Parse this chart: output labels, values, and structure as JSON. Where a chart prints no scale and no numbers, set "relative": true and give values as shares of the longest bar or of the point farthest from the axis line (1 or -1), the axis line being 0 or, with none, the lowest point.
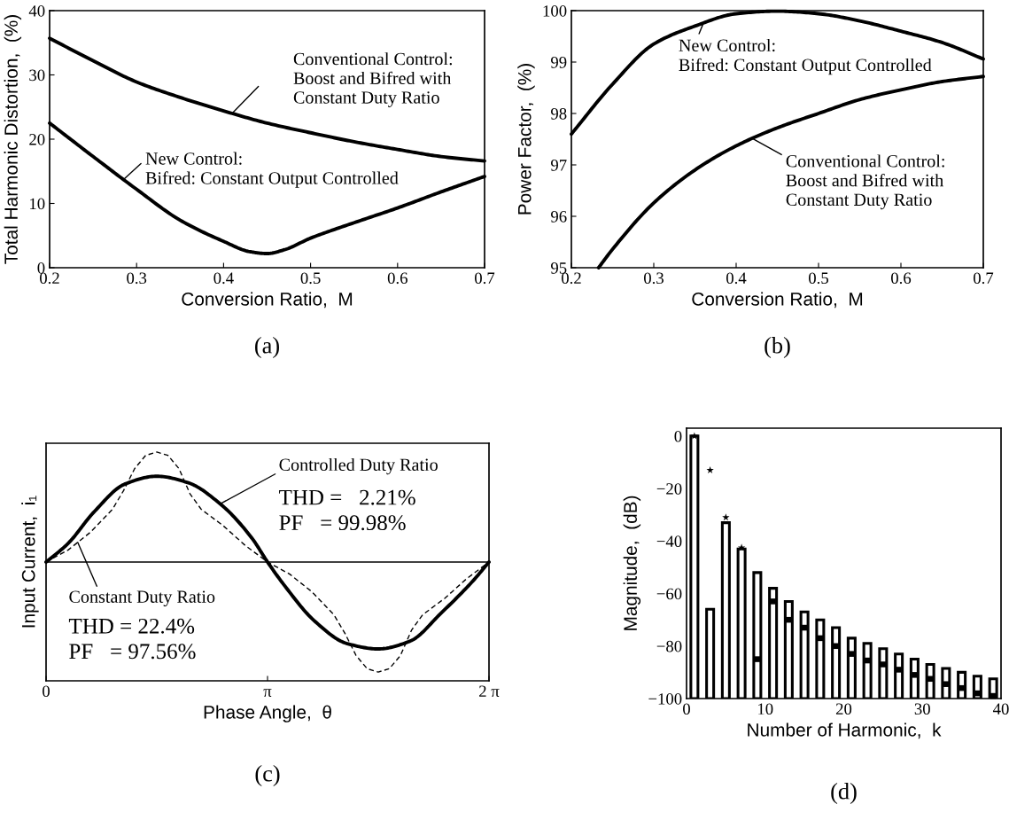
{
  "chart_data": [
    {
      "type": "line",
      "title": "(a)",
      "xlabel": "Conversion Ratio,  M",
      "ylabel": "Total Harmonic Distortion,  (%)",
      "xlim": [
        0.2,
        0.7
      ],
      "ylim": [
        0,
        40
      ],
      "xticks": [
        0.2,
        0.3,
        0.4,
        0.5,
        0.6,
        0.7
      ],
      "yticks": [
        0,
        10,
        20,
        30,
        40
      ],
      "series": [
        {
          "name": "Conventional Control:\nBoost and Bifred with\nConstant Duty Ratio",
          "color": "#000000",
          "x": [
            0.2,
            0.25,
            0.3,
            0.35,
            0.4,
            0.45,
            0.5,
            0.55,
            0.6,
            0.65,
            0.7
          ],
          "values": [
            35.7,
            32.2,
            28.9,
            26.5,
            24.4,
            22.5,
            21.0,
            19.6,
            18.4,
            17.3,
            16.6
          ]
        },
        {
          "name": "New Control:\nBifred: Constant Output Controlled",
          "color": "#000000",
          "x": [
            0.2,
            0.25,
            0.3,
            0.35,
            0.4,
            0.43,
            0.45,
            0.47,
            0.5,
            0.55,
            0.6,
            0.65,
            0.7
          ],
          "values": [
            22.5,
            17.3,
            12.2,
            7.4,
            4.1,
            2.5,
            2.2,
            2.8,
            4.6,
            7.0,
            9.3,
            11.8,
            14.2
          ]
        }
      ]
    },
    {
      "type": "line",
      "title": "(b)",
      "xlabel": "Conversion Ratio,  M",
      "ylabel": "Power Factor,  (%)",
      "xlim": [
        0.2,
        0.7
      ],
      "ylim": [
        95,
        100
      ],
      "xticks": [
        0.2,
        0.3,
        0.4,
        0.5,
        0.6,
        0.7
      ],
      "yticks": [
        95,
        96,
        97,
        98,
        99,
        100
      ],
      "series": [
        {
          "name": "New Control:\nBifred: Constant Output Controlled",
          "color": "#000000",
          "x": [
            0.2,
            0.25,
            0.3,
            0.35,
            0.4,
            0.45,
            0.5,
            0.55,
            0.6,
            0.65,
            0.7
          ],
          "values": [
            97.6,
            98.57,
            99.35,
            99.7,
            99.94,
            99.99,
            99.94,
            99.8,
            99.6,
            99.38,
            99.06
          ]
        },
        {
          "name": "Conventional Control:\nBoost and Bifred with\nConstant Duty Ratio",
          "color": "#000000",
          "x": [
            0.233,
            0.25,
            0.3,
            0.35,
            0.4,
            0.45,
            0.5,
            0.55,
            0.6,
            0.65,
            0.7
          ],
          "values": [
            95.0,
            95.36,
            96.26,
            96.9,
            97.37,
            97.72,
            98.0,
            98.27,
            98.46,
            98.62,
            98.72
          ]
        }
      ]
    },
    {
      "type": "line",
      "title": "(c)",
      "xlabel": "Phase Angle,  θ",
      "ylabel": "Input Current,  i₁",
      "relative": true,
      "xlim": [
        0,
        6.2832
      ],
      "xticks": [
        0,
        {
          "value": 3.1416,
          "label": "π"
        },
        {
          "value": 6.2832,
          "label": "2 π"
        }
      ],
      "ref_lines": [
        {
          "axis": "y",
          "value": 0,
          "color": "#000000"
        }
      ],
      "series": [
        {
          "name": "Controlled Duty Ratio",
          "color": "#000000",
          "line_style": "solid",
          "x": [
            0,
            0.314,
            0.673,
            1.122,
            1.571,
            2.02,
            2.468,
            2.917,
            3.142,
            3.366,
            3.815,
            4.264,
            4.712,
            5.161,
            5.61,
            6.058,
            6.283
          ],
          "values": [
            0,
            0.17,
            0.45,
            0.71,
            0.78,
            0.72,
            0.53,
            0.22,
            0,
            -0.2,
            -0.54,
            -0.74,
            -0.79,
            -0.72,
            -0.46,
            -0.17,
            0
          ]
        },
        {
          "name": "Constant Duty Ratio",
          "color": "#000000",
          "line_style": "dashed",
          "x": [
            0,
            0.314,
            0.628,
            0.942,
            1.1,
            1.257,
            1.414,
            1.571,
            1.728,
            1.885,
            2.042,
            2.2,
            2.513,
            2.827,
            3.142,
            3.456,
            3.77,
            4.084,
            4.241,
            4.398,
            4.555,
            4.712,
            4.869,
            5.027,
            5.184,
            5.341,
            5.655,
            5.969,
            6.283
          ],
          "values": [
            0,
            0.11,
            0.27,
            0.48,
            0.65,
            0.85,
            0.97,
            1.0,
            0.97,
            0.85,
            0.62,
            0.48,
            0.33,
            0.15,
            0,
            -0.11,
            -0.27,
            -0.48,
            -0.65,
            -0.85,
            -0.97,
            -1.0,
            -0.97,
            -0.85,
            -0.62,
            -0.48,
            -0.33,
            -0.15,
            0
          ]
        }
      ],
      "annotations": [
        "THD =   2.21%",
        "PF   = 99.98%",
        "THD = 22.4%",
        "PF   = 97.56%"
      ]
    },
    {
      "type": "bar",
      "title": "(d)",
      "xlabel": "Number of Harmonic,  k",
      "ylabel": "Magnitude,  (dB)",
      "xlim": [
        0,
        40
      ],
      "ylim": [
        -100,
        3
      ],
      "xticks": [
        0,
        10,
        20,
        30,
        40
      ],
      "yticks": [
        0,
        -20,
        -40,
        -60,
        -80,
        -100
      ],
      "series": [
        {
          "type": "bar",
          "color": "#000000",
          "x": [
            1,
            3,
            5,
            7,
            9,
            11,
            13,
            15,
            17,
            19,
            21,
            23,
            25,
            27,
            29,
            31,
            33,
            35,
            37,
            39
          ],
          "base": [
            -100,
            -100,
            -100,
            -100,
            -100,
            -100,
            -100,
            -100,
            -100,
            -100,
            -100,
            -100,
            -100,
            -100,
            -100,
            -100,
            -100,
            -100,
            -100,
            -100
          ],
          "values": [
            100,
            34,
            67,
            57,
            48,
            42,
            37,
            33,
            30,
            27,
            23,
            21,
            19,
            17,
            15,
            13,
            11.5,
            10,
            8.5,
            7.5
          ]
        },
        {
          "type": "scatter",
          "marker": "star",
          "color": "#000000",
          "x": [
            1,
            3,
            5,
            7
          ],
          "values": [
            0,
            -13,
            -31,
            -42.5
          ]
        },
        {
          "type": "scatter",
          "marker": "square",
          "color": "#000000",
          "x": [
            9,
            11,
            13,
            15,
            17,
            19,
            21,
            23,
            25,
            27,
            29,
            31,
            33,
            35,
            37,
            39
          ],
          "values": [
            -85,
            -63,
            -70,
            -73,
            -77,
            -80,
            -83,
            -85.5,
            -87,
            -89,
            -91,
            -92.5,
            -94.5,
            -96,
            -98,
            -99
          ]
        }
      ]
    }
  ]
}
